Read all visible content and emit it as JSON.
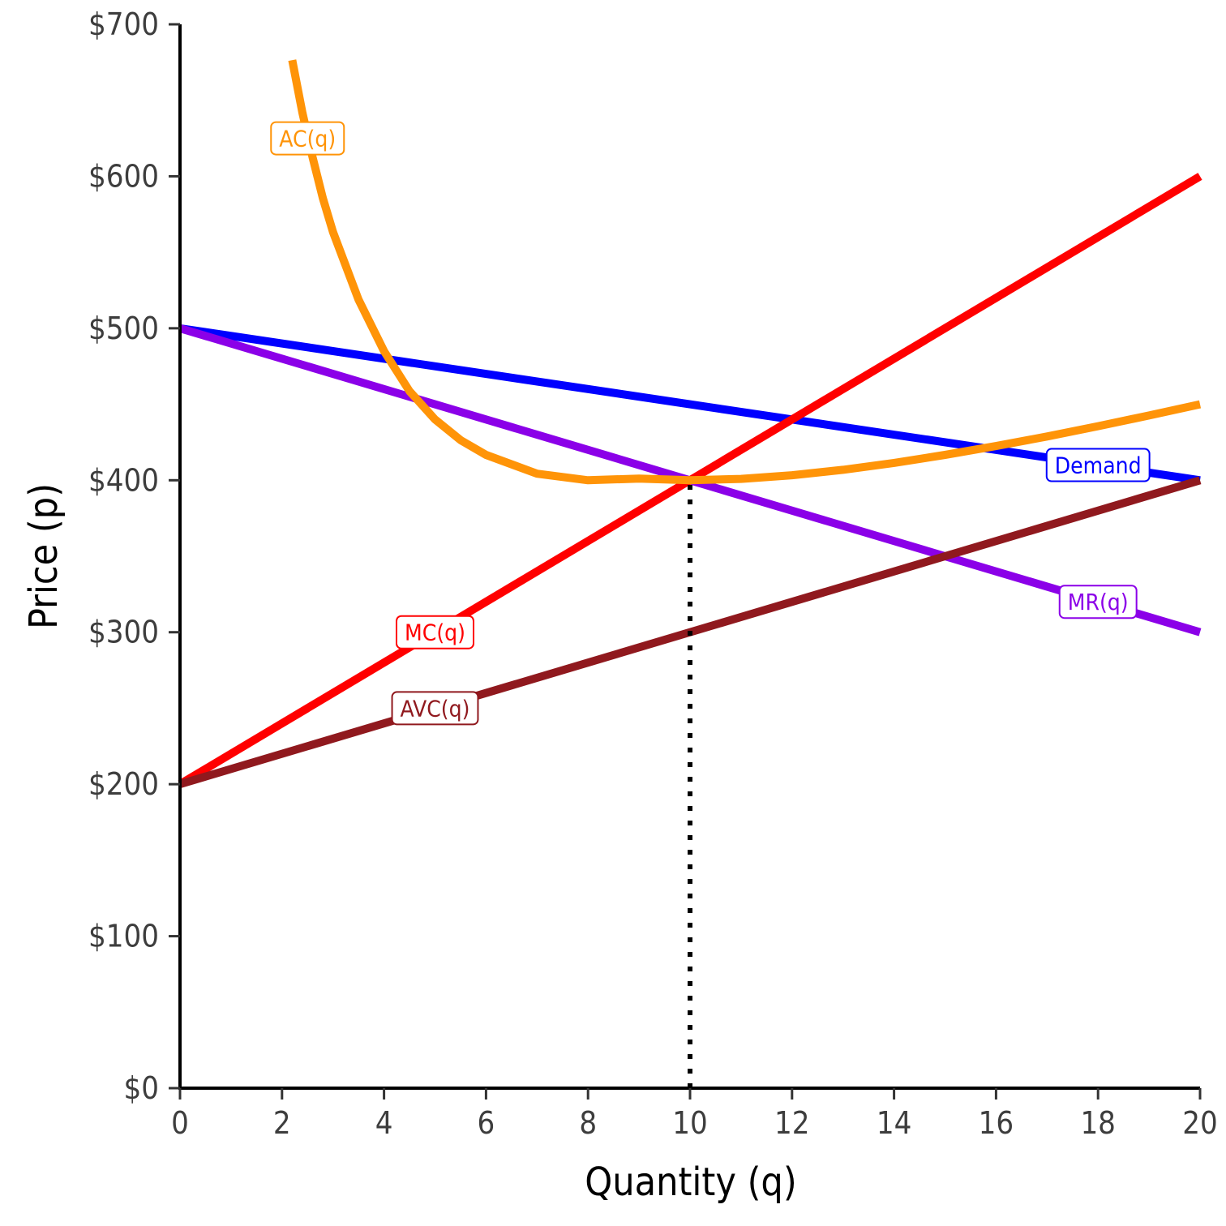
{
  "chart_data": {
    "type": "line",
    "xlabel": "Quantity (q)",
    "ylabel": "Price (p)",
    "xlim": [
      0,
      20
    ],
    "ylim": [
      0,
      700
    ],
    "x_ticks": [
      {
        "value": 0,
        "label": "0"
      },
      {
        "value": 2,
        "label": "2"
      },
      {
        "value": 4,
        "label": "4"
      },
      {
        "value": 6,
        "label": "6"
      },
      {
        "value": 8,
        "label": "8"
      },
      {
        "value": 10,
        "label": "10"
      },
      {
        "value": 12,
        "label": "12"
      },
      {
        "value": 14,
        "label": "14"
      },
      {
        "value": 16,
        "label": "16"
      },
      {
        "value": 18,
        "label": "18"
      },
      {
        "value": 20,
        "label": "20"
      }
    ],
    "y_ticks": [
      {
        "value": 0,
        "label": "$0"
      },
      {
        "value": 100,
        "label": "$100"
      },
      {
        "value": 200,
        "label": "$200"
      },
      {
        "value": 300,
        "label": "$300"
      },
      {
        "value": 400,
        "label": "$400"
      },
      {
        "value": 500,
        "label": "$500"
      },
      {
        "value": 600,
        "label": "$600"
      },
      {
        "value": 700,
        "label": "$700"
      }
    ],
    "grid": false,
    "series": [
      {
        "name": "Demand",
        "color": "#0000ff",
        "x": [
          0,
          20
        ],
        "y": [
          500,
          400
        ],
        "label_at": {
          "x": 18,
          "y": 410
        }
      },
      {
        "name": "MR(q)",
        "color": "#8b00e8",
        "x": [
          0,
          20
        ],
        "y": [
          500,
          300
        ],
        "label_at": {
          "x": 18,
          "y": 320
        }
      },
      {
        "name": "MC(q)",
        "color": "#ff0000",
        "x": [
          0,
          20
        ],
        "y": [
          200,
          600
        ],
        "label_at": {
          "x": 5,
          "y": 300
        }
      },
      {
        "name": "AVC(q)",
        "color": "#90191e",
        "x": [
          0,
          20
        ],
        "y": [
          200,
          400
        ],
        "label_at": {
          "x": 5,
          "y": 250
        }
      },
      {
        "name": "AC(q)",
        "color": "#ff9408",
        "x": [
          2.2,
          2.4,
          2.6,
          2.8,
          3,
          3.5,
          4,
          4.5,
          5,
          5.5,
          6,
          7,
          8,
          9,
          10,
          11,
          12,
          13,
          14,
          15,
          16,
          17,
          18,
          19,
          20
        ],
        "y": [
          676.4,
          641.7,
          612.5,
          585.7,
          563.3,
          518.9,
          485,
          458.6,
          440,
          426.4,
          416.7,
          404.3,
          400,
          401.1,
          400,
          400.9,
          403.3,
          406.9,
          411.4,
          416.7,
          422.5,
          428.8,
          435.6,
          442.6,
          450
        ],
        "label_at": {
          "x": 2.5,
          "y": 625
        }
      }
    ],
    "annotations": [
      {
        "type": "vline",
        "x": 10,
        "y_from": 0,
        "y_to": 400,
        "style": "dotted"
      }
    ]
  }
}
